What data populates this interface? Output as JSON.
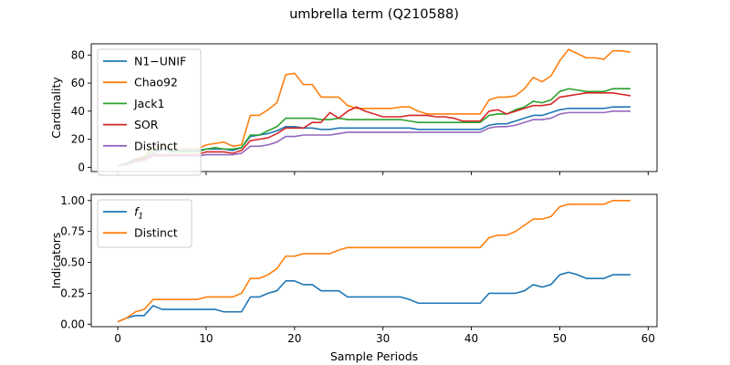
{
  "figure": {
    "title": "umbrella term (Q210588)",
    "xlabel": "Sample Periods"
  },
  "chart_data": [
    {
      "type": "line",
      "title": "",
      "xlabel": "",
      "ylabel": "Cardinality",
      "xlim": [
        -3,
        61
      ],
      "ylim": [
        -3,
        88
      ],
      "xticks": [
        0,
        10,
        20,
        30,
        40,
        50,
        60
      ],
      "yticks": [
        0,
        20,
        40,
        60,
        80
      ],
      "ytick_labels": [
        "0",
        "20",
        "40",
        "60",
        "80"
      ],
      "legend_position": "upper left",
      "grid": false,
      "x": [
        0,
        1,
        2,
        3,
        4,
        5,
        6,
        7,
        8,
        9,
        10,
        11,
        12,
        13,
        14,
        15,
        16,
        17,
        18,
        19,
        20,
        21,
        22,
        23,
        24,
        25,
        26,
        27,
        28,
        29,
        30,
        31,
        32,
        33,
        34,
        35,
        36,
        37,
        38,
        39,
        40,
        41,
        42,
        43,
        44,
        45,
        46,
        47,
        48,
        49,
        50,
        51,
        52,
        53,
        54,
        55,
        56,
        57,
        58
      ],
      "series": [
        {
          "name": "N1−UNIF",
          "color": "#1f77b4",
          "values": [
            1,
            2,
            4,
            5,
            10,
            13,
            12,
            12,
            12,
            12,
            13,
            13,
            13,
            12,
            14,
            22,
            23,
            24,
            26,
            29,
            29,
            28,
            28,
            27,
            27,
            28,
            28,
            28,
            28,
            28,
            28,
            28,
            28,
            28,
            27,
            27,
            27,
            27,
            27,
            27,
            27,
            27,
            30,
            31,
            31,
            33,
            35,
            37,
            37,
            39,
            41,
            42,
            42,
            42,
            42,
            42,
            43,
            43,
            43
          ]
        },
        {
          "name": "Chao92",
          "color": "#ff7f0e",
          "values": [
            1,
            3,
            6,
            8,
            14,
            16,
            13,
            13,
            13,
            13,
            16,
            17,
            18,
            15,
            16,
            37,
            37,
            41,
            46,
            66,
            67,
            59,
            59,
            50,
            50,
            50,
            44,
            42,
            42,
            42,
            42,
            42,
            43,
            43,
            40,
            38,
            38,
            38,
            38,
            38,
            38,
            38,
            48,
            50,
            50,
            51,
            56,
            64,
            61,
            65,
            76,
            84,
            81,
            78,
            78,
            77,
            83,
            83,
            82
          ]
        },
        {
          "name": "Jack1",
          "color": "#2ca02c",
          "values": [
            1,
            3,
            6,
            7,
            12,
            14,
            11,
            11,
            11,
            11,
            13,
            14,
            13,
            13,
            14,
            23,
            23,
            26,
            29,
            35,
            35,
            35,
            35,
            34,
            34,
            35,
            34,
            34,
            34,
            34,
            34,
            34,
            34,
            33,
            32,
            32,
            32,
            32,
            32,
            32,
            32,
            32,
            37,
            38,
            38,
            41,
            43,
            47,
            46,
            48,
            54,
            56,
            55,
            54,
            54,
            54,
            56,
            56,
            56
          ]
        },
        {
          "name": "SOR",
          "color": "#d62728",
          "values": [
            1,
            2,
            5,
            6,
            9,
            9,
            9,
            9,
            9,
            9,
            11,
            11,
            11,
            10,
            12,
            19,
            20,
            21,
            24,
            28,
            28,
            28,
            32,
            32,
            39,
            35,
            40,
            43,
            40,
            38,
            36,
            36,
            36,
            37,
            37,
            37,
            36,
            36,
            35,
            33,
            33,
            33,
            40,
            41,
            38,
            40,
            42,
            44,
            44,
            45,
            50,
            51,
            52,
            53,
            53,
            53,
            53,
            52,
            51
          ]
        },
        {
          "name": "Distinct",
          "color": "#9467bd",
          "values": [
            1,
            2,
            4,
            5,
            8,
            8,
            8,
            8,
            8,
            8,
            9,
            9,
            9,
            9,
            10,
            15,
            15,
            16,
            18,
            22,
            22,
            23,
            23,
            23,
            23,
            24,
            25,
            25,
            25,
            25,
            25,
            25,
            25,
            25,
            25,
            25,
            25,
            25,
            25,
            25,
            25,
            25,
            28,
            29,
            29,
            30,
            32,
            34,
            34,
            35,
            38,
            39,
            39,
            39,
            39,
            39,
            40,
            40,
            40
          ]
        }
      ]
    },
    {
      "type": "line",
      "title": "",
      "xlabel": "Sample Periods",
      "ylabel": "Indicators",
      "xlim": [
        -3,
        61
      ],
      "ylim": [
        -0.02,
        1.05
      ],
      "xticks": [
        0,
        10,
        20,
        30,
        40,
        50,
        60
      ],
      "yticks": [
        0,
        0.25,
        0.5,
        0.75,
        1.0
      ],
      "ytick_labels": [
        "0.00",
        "0.25",
        "0.50",
        "0.75",
        "1.00"
      ],
      "legend_position": "upper left",
      "grid": false,
      "x": [
        0,
        1,
        2,
        3,
        4,
        5,
        6,
        7,
        8,
        9,
        10,
        11,
        12,
        13,
        14,
        15,
        16,
        17,
        18,
        19,
        20,
        21,
        22,
        23,
        24,
        25,
        26,
        27,
        28,
        29,
        30,
        31,
        32,
        33,
        34,
        35,
        36,
        37,
        38,
        39,
        40,
        41,
        42,
        43,
        44,
        45,
        46,
        47,
        48,
        49,
        50,
        51,
        52,
        53,
        54,
        55,
        56,
        57,
        58
      ],
      "series": [
        {
          "name": "f1",
          "color": "#1f77b4",
          "values": [
            0.02,
            0.05,
            0.07,
            0.07,
            0.15,
            0.12,
            0.12,
            0.12,
            0.12,
            0.12,
            0.12,
            0.12,
            0.1,
            0.1,
            0.1,
            0.22,
            0.22,
            0.25,
            0.27,
            0.35,
            0.35,
            0.32,
            0.32,
            0.27,
            0.27,
            0.27,
            0.22,
            0.22,
            0.22,
            0.22,
            0.22,
            0.22,
            0.22,
            0.2,
            0.17,
            0.17,
            0.17,
            0.17,
            0.17,
            0.17,
            0.17,
            0.17,
            0.25,
            0.25,
            0.25,
            0.25,
            0.27,
            0.32,
            0.3,
            0.32,
            0.4,
            0.42,
            0.4,
            0.37,
            0.37,
            0.37,
            0.4,
            0.4,
            0.4
          ]
        },
        {
          "name": "Distinct",
          "color": "#ff7f0e",
          "values": [
            0.02,
            0.05,
            0.1,
            0.12,
            0.2,
            0.2,
            0.2,
            0.2,
            0.2,
            0.2,
            0.22,
            0.22,
            0.22,
            0.22,
            0.25,
            0.37,
            0.37,
            0.4,
            0.45,
            0.55,
            0.55,
            0.57,
            0.57,
            0.57,
            0.57,
            0.6,
            0.62,
            0.62,
            0.62,
            0.62,
            0.62,
            0.62,
            0.62,
            0.62,
            0.62,
            0.62,
            0.62,
            0.62,
            0.62,
            0.62,
            0.62,
            0.62,
            0.7,
            0.72,
            0.72,
            0.75,
            0.8,
            0.85,
            0.85,
            0.87,
            0.95,
            0.97,
            0.97,
            0.97,
            0.97,
            0.97,
            1.0,
            1.0,
            1.0
          ]
        }
      ]
    }
  ]
}
